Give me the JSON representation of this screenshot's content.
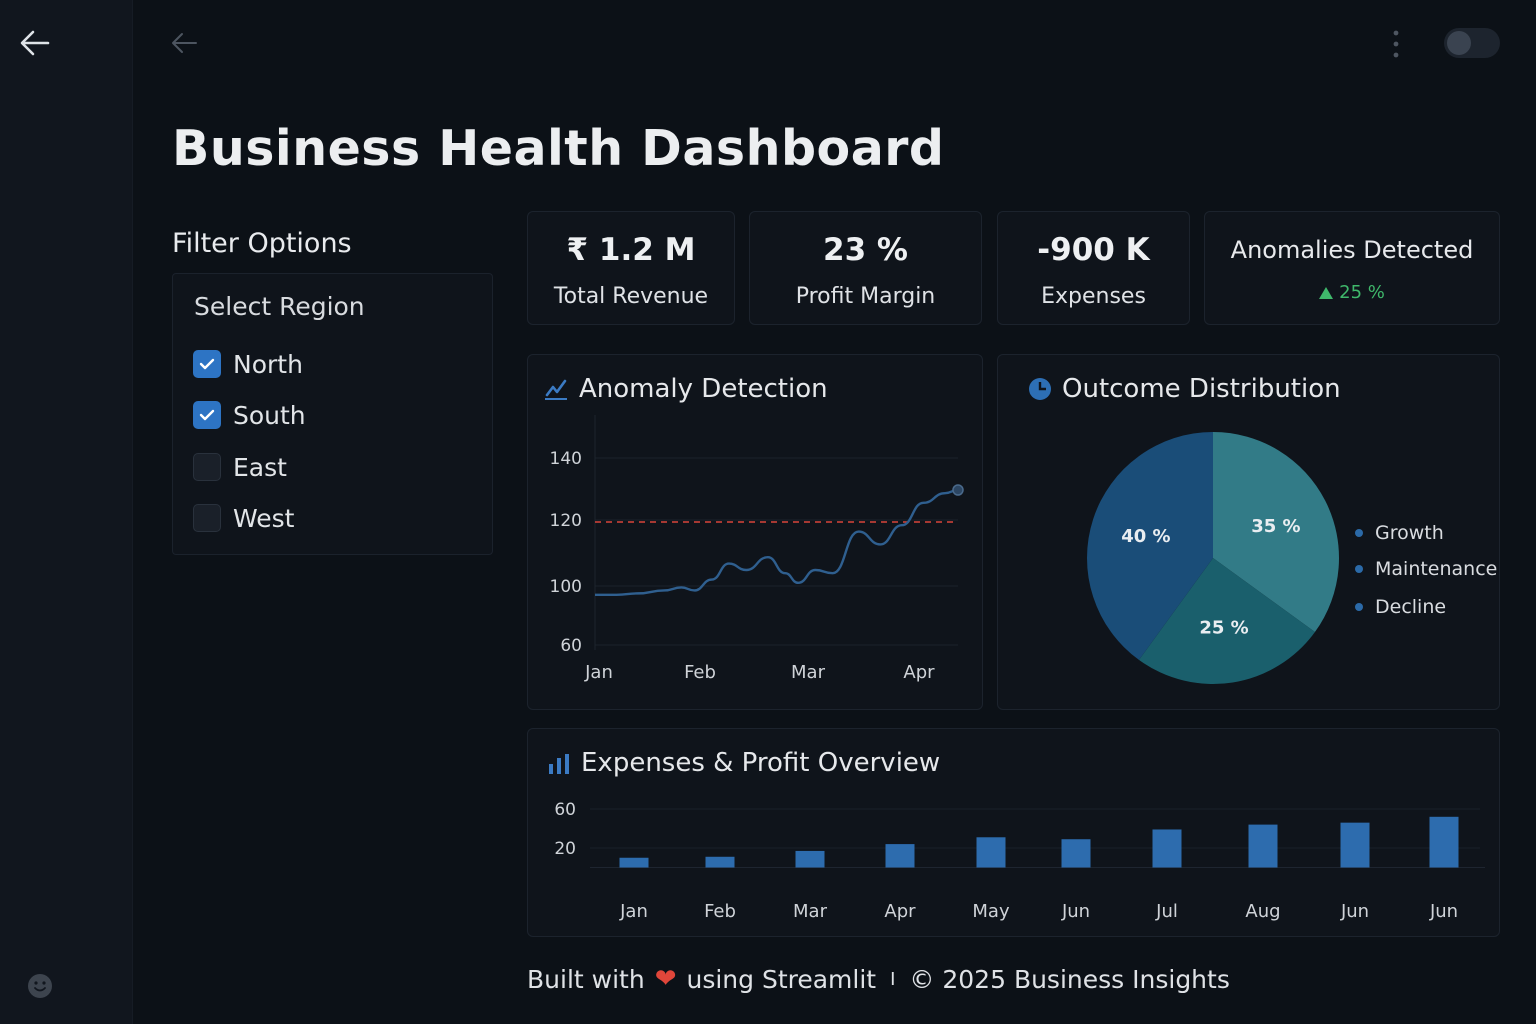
{
  "page_title": "Business Health Dashboard",
  "filter": {
    "title": "Filter Options",
    "subtitle": "Select Region",
    "regions": [
      {
        "label": "North",
        "checked": true
      },
      {
        "label": "South",
        "checked": true
      },
      {
        "label": "East",
        "checked": false
      },
      {
        "label": "West",
        "checked": false
      }
    ]
  },
  "kpis": [
    {
      "value": "₹ 1.2 M",
      "label": "Total Revenue"
    },
    {
      "value": "23 %",
      "label": "Profit Margin"
    },
    {
      "value": "-900 K",
      "label": "Expenses"
    },
    {
      "title": "Anomalies Detected",
      "delta": "25 %",
      "delta_color": "#3fb86b"
    }
  ],
  "anomaly": {
    "title": "Anomaly Detection",
    "icon": "line-chart-icon"
  },
  "outcome": {
    "title": "Outcome Distribution",
    "icon": "pie-chart-icon"
  },
  "expenses": {
    "title": "Expenses & Profit Overview",
    "icon": "bar-chart-icon"
  },
  "footer": {
    "prefix": "Built with",
    "suffix": "using Streamlit",
    "separator": "I",
    "copyright": "© 2025 Business Insights"
  },
  "colors": {
    "accent": "#2d74c4",
    "threshold": "#d9443b",
    "line": "#2f5f8f",
    "bar": "#2d6cae",
    "positive": "#3fb86b"
  },
  "chart_data": [
    {
      "type": "line",
      "title": "Anomaly Detection",
      "x_ticks": [
        "Jan",
        "Feb",
        "Mar",
        "Apr"
      ],
      "y_ticks": [
        60,
        100,
        120,
        140
      ],
      "series": [
        {
          "values": [
            [
              0.0,
              94
            ],
            [
              0.25,
              94
            ],
            [
              0.5,
              95
            ],
            [
              0.8,
              97
            ],
            [
              1.0,
              99
            ],
            [
              1.15,
              97
            ],
            [
              1.35,
              102
            ],
            [
              1.55,
              107
            ],
            [
              1.75,
              105
            ],
            [
              2.0,
              109
            ],
            [
              2.2,
              104
            ],
            [
              2.35,
              101
            ],
            [
              2.55,
              105
            ],
            [
              2.75,
              104
            ],
            [
              3.05,
              117
            ],
            [
              3.3,
              113
            ],
            [
              3.55,
              119
            ],
            [
              3.8,
              126
            ],
            [
              4.05,
              129
            ],
            [
              4.2,
              130
            ]
          ]
        }
      ],
      "threshold": 120,
      "grid": true
    },
    {
      "type": "pie",
      "title": "Outcome Distribution",
      "slices": [
        {
          "label": "40 %",
          "value": 40,
          "color": "#1a4d78"
        },
        {
          "label": "35 %",
          "value": 35,
          "color": "#327b87"
        },
        {
          "label": "25 %",
          "value": 25,
          "color": "#1a5f6c"
        }
      ],
      "legend": [
        "Growth",
        "Maintenance",
        "Decline"
      ],
      "legend_position": "right"
    },
    {
      "type": "bar",
      "title": "Expenses & Profit Overview",
      "categories": [
        "Jan",
        "Feb",
        "Mar",
        "Apr",
        "May",
        "Jun",
        "Jul",
        "Aug",
        "Jun",
        "Jun"
      ],
      "values": [
        10,
        11,
        17,
        24,
        31,
        29,
        39,
        44,
        46,
        52
      ],
      "y_ticks": [
        20,
        60
      ],
      "grid": true
    }
  ]
}
